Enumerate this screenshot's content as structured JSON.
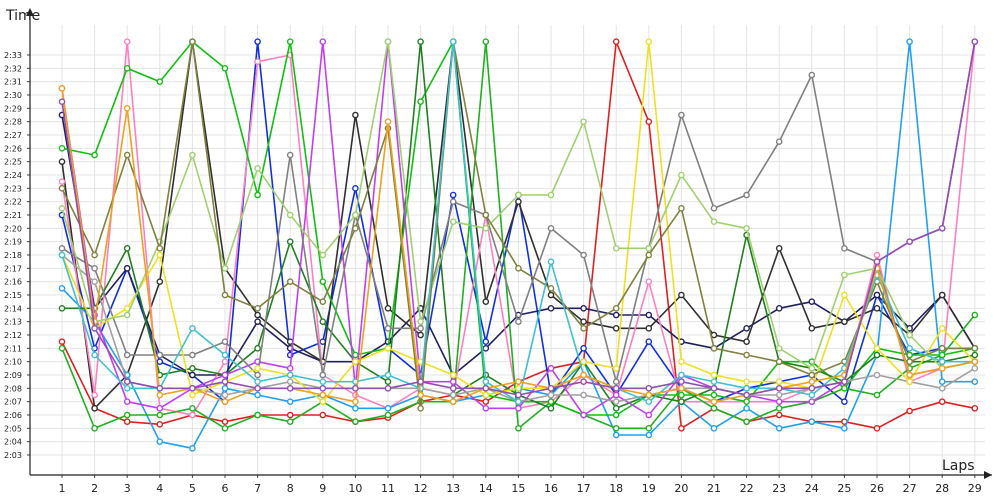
{
  "chart_data": {
    "type": "line",
    "xlabel": "Laps",
    "ylabel": "Time",
    "x": [
      1,
      2,
      3,
      4,
      5,
      6,
      7,
      8,
      9,
      10,
      11,
      12,
      13,
      14,
      15,
      16,
      17,
      18,
      19,
      20,
      21,
      22,
      23,
      24,
      25,
      26,
      27,
      28,
      29
    ],
    "y_ticks": [
      "2:03",
      "2:04",
      "2:05",
      "2:06",
      "2:07",
      "2:08",
      "2:09",
      "2:10",
      "2:11",
      "2:12",
      "2:13",
      "2:14",
      "2:15",
      "2:16",
      "2:17",
      "2:18",
      "2:19",
      "2:20",
      "2:21",
      "2:22",
      "2:23",
      "2:24",
      "2:25",
      "2:26",
      "2:27",
      "2:28",
      "2:29",
      "2:30",
      "2:31",
      "2:32",
      "2:33"
    ],
    "ylim_seconds": [
      122,
      154
    ],
    "y_unit": "seconds",
    "grid": true,
    "series": [
      {
        "color": "#e02020",
        "values": [
          131.5,
          126.5,
          125.5,
          125.3,
          126.0,
          125.5,
          126.0,
          126.0,
          126.0,
          125.5,
          125.8,
          127.0,
          127.5,
          127.0,
          128.5,
          129.5,
          130.0,
          154,
          148,
          125.0,
          126.5,
          125.5,
          126.0,
          125.5,
          125.5,
          125.0,
          126.3,
          127.0,
          126.5
        ]
      },
      {
        "color": "#1030e0",
        "values": [
          141.0,
          131.0,
          137.0,
          130.0,
          129.0,
          127.0,
          154,
          130.5,
          131.5,
          143.0,
          131.0,
          129.0,
          142.5,
          131.5,
          142.5,
          127.5,
          131.0,
          127.5,
          131.5,
          128.0,
          127.0,
          128.0,
          128.5,
          129.0,
          127.0,
          135.0,
          130.5,
          131.0,
          131.0
        ]
      },
      {
        "color": "#202060",
        "values": [
          148.5,
          134.0,
          137.0,
          130.5,
          129.0,
          129.0,
          133.0,
          131.0,
          130.0,
          130.0,
          131.5,
          134.0,
          129.0,
          131.0,
          133.5,
          134.0,
          134.0,
          133.5,
          133.5,
          131.5,
          131.0,
          132.5,
          134.0,
          134.5,
          133.0,
          135.0,
          132.5,
          135.0,
          131.0
        ]
      },
      {
        "color": "#303030",
        "values": [
          145.0,
          126.5,
          129.0,
          136.0,
          154,
          137.0,
          133.5,
          131.5,
          130.0,
          148.5,
          134.0,
          132.0,
          154,
          134.5,
          142.0,
          135.0,
          133.0,
          132.5,
          132.5,
          135.0,
          132.0,
          131.5,
          138.5,
          132.5,
          133.0,
          134.0,
          132.0,
          135.0,
          131.0
        ]
      },
      {
        "color": "#ff80c0",
        "values": [
          143.5,
          127.5,
          154,
          126.5,
          126.0,
          130.0,
          152.5,
          153.0,
          129.0,
          127.5,
          126.5,
          128.0,
          127.5,
          141.0,
          126.5,
          127.0,
          129.0,
          127.5,
          136.0,
          127.0,
          127.0,
          127.0,
          127.0,
          128.0,
          128.5,
          138.0,
          128.5,
          129.5,
          154
        ]
      },
      {
        "color": "#20a0f0",
        "values": [
          135.5,
          133.0,
          129.0,
          124.0,
          123.5,
          128.0,
          127.5,
          127.0,
          127.5,
          126.5,
          126.5,
          127.5,
          127.0,
          127.5,
          128.0,
          127.5,
          130.0,
          124.5,
          124.5,
          127.0,
          125.0,
          126.5,
          125.0,
          125.5,
          125.0,
          130.5,
          154,
          128.5,
          128.5
        ]
      },
      {
        "color": "#20b020",
        "values": [
          131.0,
          125.0,
          126.0,
          126.0,
          126.5,
          125.0,
          126.0,
          125.5,
          127.0,
          125.5,
          126.0,
          127.0,
          127.0,
          154,
          125.0,
          127.0,
          126.0,
          125.0,
          125.0,
          128.0,
          126.5,
          125.5,
          126.5,
          127.0,
          128.0,
          127.5,
          129.5,
          130.5,
          133.5
        ]
      },
      {
        "color": "#10c010",
        "values": [
          146.0,
          145.5,
          152.0,
          151.0,
          154,
          152.0,
          142.5,
          154,
          136.0,
          130.5,
          131.0,
          149.5,
          154,
          127.5,
          127.0,
          127.0,
          126.0,
          126.0,
          127.5,
          127.5,
          127.5,
          127.0,
          130.0,
          130.0,
          128.0,
          131.0,
          130.5,
          130.5,
          131.0
        ]
      },
      {
        "color": "#208020",
        "values": [
          134.0,
          134.0,
          138.5,
          129.0,
          129.5,
          129.0,
          131.0,
          139.0,
          133.0,
          130.0,
          128.5,
          154,
          127.5,
          129.0,
          127.5,
          126.5,
          130.0,
          126.5,
          127.5,
          127.0,
          128.0,
          139.5,
          130.0,
          129.5,
          128.5,
          130.5,
          130.0,
          130.0,
          130.5
        ]
      },
      {
        "color": "#c040f0",
        "values": [
          150.5,
          133.5,
          127.0,
          126.5,
          128.0,
          129.0,
          130.0,
          129.5,
          154,
          128.0,
          154,
          128.5,
          128.5,
          126.5,
          126.5,
          129.5,
          126.0,
          127.5,
          126.0,
          129.0,
          128.0,
          127.5,
          127.0,
          127.0,
          128.5,
          137.5,
          139.0,
          140.0,
          154
        ]
      },
      {
        "color": "#808080",
        "values": [
          138.5,
          137.0,
          130.5,
          130.5,
          130.5,
          131.5,
          129.0,
          145.5,
          129.0,
          141.0,
          132.5,
          132.5,
          142.0,
          141.0,
          133.0,
          140.0,
          138.0,
          128.5,
          138.5,
          148.5,
          141.5,
          142.5,
          146.5,
          151.5,
          138.5,
          137.5,
          129.0,
          129.5,
          130.0
        ]
      },
      {
        "color": "#a0a0a0",
        "values": [
          138.0,
          136.0,
          128.5,
          128.0,
          128.0,
          127.5,
          128.0,
          128.5,
          128.0,
          128.0,
          128.0,
          128.0,
          127.5,
          128.0,
          127.0,
          127.5,
          127.5,
          127.0,
          127.5,
          128.0,
          128.0,
          127.5,
          127.5,
          128.0,
          128.5,
          129.0,
          128.5,
          128.0,
          129.5
        ]
      },
      {
        "color": "#f0e020",
        "values": [
          138.0,
          132.5,
          134.0,
          138.0,
          127.5,
          128.5,
          129.5,
          129.0,
          127.0,
          130.0,
          131.0,
          130.0,
          129.0,
          127.5,
          128.0,
          128.0,
          130.0,
          129.5,
          154,
          130.0,
          129.0,
          128.5,
          128.5,
          128.0,
          135.0,
          131.0,
          128.5,
          132.5,
          130.0
        ]
      },
      {
        "color": "#a0d070",
        "values": [
          141.5,
          133.0,
          133.5,
          139.0,
          145.5,
          137.0,
          144.5,
          141.0,
          138.0,
          141.0,
          154,
          133.0,
          140.5,
          140.0,
          142.5,
          142.5,
          148.0,
          138.5,
          138.5,
          144.0,
          140.5,
          140.0,
          131.0,
          129.5,
          136.5,
          137.0,
          132.0,
          129.5,
          130.0
        ]
      },
      {
        "color": "#808040",
        "values": [
          143.0,
          138.0,
          145.5,
          138.5,
          154,
          135.0,
          134.0,
          136.0,
          134.5,
          140.0,
          147.5,
          126.5,
          154,
          141.0,
          137.0,
          135.5,
          132.5,
          134.0,
          138.0,
          141.5,
          131.0,
          130.5,
          130.0,
          129.0,
          130.0,
          136.0,
          130.0,
          131.0,
          131.0
        ]
      },
      {
        "color": "#40c0d0",
        "values": [
          138.0,
          130.5,
          128.0,
          128.0,
          132.5,
          130.5,
          128.5,
          129.0,
          128.5,
          128.5,
          129.0,
          128.0,
          154,
          128.5,
          127.0,
          137.5,
          129.0,
          128.0,
          127.0,
          129.0,
          128.5,
          128.0,
          128.0,
          127.5,
          129.5,
          136.5,
          131.0,
          130.0,
          130.0
        ]
      },
      {
        "color": "#f0a020",
        "values": [
          150.5,
          133.0,
          149.0,
          127.5,
          128.0,
          127.0,
          128.0,
          128.0,
          127.5,
          127.0,
          148.0,
          127.5,
          127.0,
          128.0,
          128.5,
          128.0,
          129.0,
          128.0,
          127.5,
          128.0,
          127.0,
          127.5,
          128.0,
          128.5,
          129.0,
          137.0,
          129.0,
          129.5,
          130.0
        ]
      },
      {
        "color": "#9050b0",
        "values": [
          149.5,
          132.5,
          128.5,
          128.0,
          128.0,
          128.5,
          128.0,
          128.0,
          128.0,
          128.0,
          128.0,
          128.5,
          128.0,
          128.0,
          127.5,
          128.0,
          128.5,
          128.0,
          128.0,
          128.5,
          128.0,
          127.5,
          128.0,
          128.0,
          128.5,
          137.5,
          139.0,
          140.0,
          154
        ]
      }
    ]
  }
}
